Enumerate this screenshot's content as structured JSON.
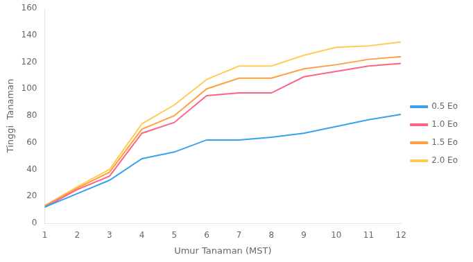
{
  "chart_data": {
    "type": "line",
    "x": [
      1,
      2,
      3,
      4,
      5,
      6,
      7,
      8,
      9,
      10,
      11,
      12
    ],
    "series": [
      {
        "name": "0.5 Eo",
        "values": [
          12,
          22,
          32,
          48,
          53,
          62,
          62,
          64,
          67,
          72,
          77,
          81
        ]
      },
      {
        "name": "1.0 Eo",
        "values": [
          12,
          25,
          35,
          67,
          75,
          95,
          97,
          97,
          109,
          113,
          117,
          119
        ]
      },
      {
        "name": "1.5 Eo",
        "values": [
          13,
          26,
          38,
          70,
          80,
          100,
          108,
          108,
          115,
          118,
          122,
          124
        ]
      },
      {
        "name": "2.0 Eo",
        "values": [
          13,
          27,
          40,
          74,
          88,
          107,
          117,
          117,
          125,
          131,
          132,
          135
        ]
      }
    ],
    "xlabel": "Umur Tanaman (MST)",
    "ylabel": "Tinggi  Tanaman",
    "xlim": [
      1,
      12
    ],
    "xticks": [
      1,
      2,
      3,
      4,
      5,
      6,
      7,
      8,
      9,
      10,
      11,
      12
    ],
    "ylim": [
      0,
      160
    ],
    "yticks": [
      0,
      20,
      40,
      60,
      80,
      100,
      120,
      140,
      160
    ],
    "grid": false,
    "legend": "right"
  }
}
